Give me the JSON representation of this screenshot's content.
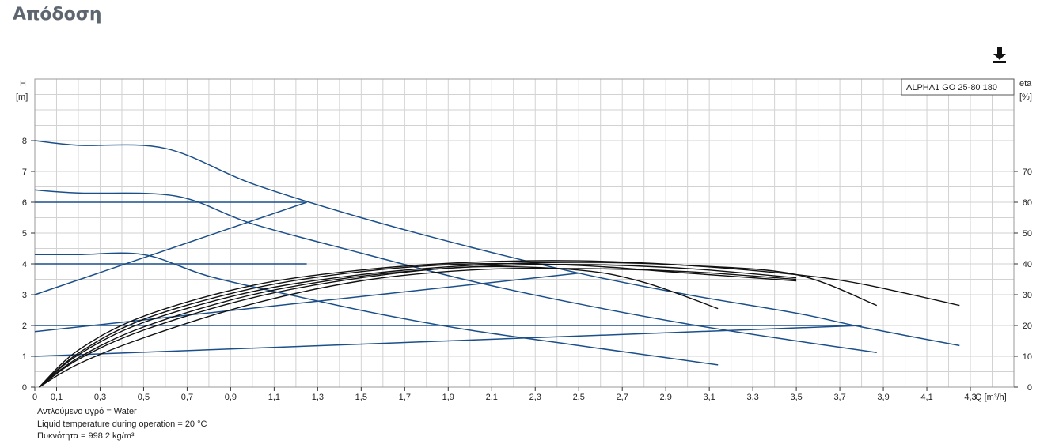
{
  "page": {
    "title": "Απόδοση"
  },
  "toolbar": {
    "download_icon": "download-icon"
  },
  "chart_data": {
    "type": "line",
    "title": "ALPHA1 GO 25-80 180",
    "xlabel": "Q [m³/h]",
    "ylabel_left": {
      "name": "H",
      "unit": "[m]"
    },
    "ylabel_right": {
      "name": "eta",
      "unit": "[%]"
    },
    "xlim": [
      0,
      4.5
    ],
    "ylim_left": [
      0,
      10
    ],
    "ylim_right": [
      0,
      100
    ],
    "x_ticks": [
      "0",
      "0,1",
      "0,3",
      "0,5",
      "0,7",
      "0,9",
      "1,1",
      "1,3",
      "1,5",
      "1,7",
      "1,9",
      "2,1",
      "2,3",
      "2,5",
      "2,7",
      "2,9",
      "3,1",
      "3,3",
      "3,5",
      "3,7",
      "3,9",
      "4,1",
      "4,3"
    ],
    "y_ticks_left": [
      "0",
      "1",
      "2",
      "3",
      "4",
      "5",
      "6",
      "7",
      "8"
    ],
    "y_ticks_right": [
      "0",
      "10",
      "20",
      "30",
      "40",
      "50",
      "60",
      "70"
    ],
    "grid": true,
    "legend": "top-right",
    "colors": {
      "head": "#1b4f8a",
      "efficiency": "#111111",
      "grid": "#d2d2d2"
    },
    "head_curves": [
      {
        "points": [
          [
            0,
            8.0
          ],
          [
            0.2,
            7.85
          ],
          [
            0.6,
            7.75
          ],
          [
            1.0,
            6.6
          ],
          [
            1.5,
            5.5
          ],
          [
            2.0,
            4.55
          ],
          [
            2.5,
            3.7
          ],
          [
            3.0,
            3.0
          ],
          [
            3.5,
            2.4
          ],
          [
            3.8,
            1.95
          ],
          [
            4.25,
            1.35
          ]
        ]
      },
      {
        "points": [
          [
            0,
            6.4
          ],
          [
            0.2,
            6.3
          ],
          [
            0.65,
            6.2
          ],
          [
            1.0,
            5.3
          ],
          [
            1.5,
            4.35
          ],
          [
            2.0,
            3.45
          ],
          [
            2.5,
            2.7
          ],
          [
            3.0,
            2.05
          ],
          [
            3.5,
            1.5
          ],
          [
            3.87,
            1.12
          ]
        ]
      },
      {
        "points": [
          [
            0,
            4.3
          ],
          [
            0.2,
            4.3
          ],
          [
            0.5,
            4.3
          ],
          [
            0.8,
            3.6
          ],
          [
            1.2,
            2.95
          ],
          [
            1.6,
            2.35
          ],
          [
            2.0,
            1.85
          ],
          [
            2.5,
            1.35
          ],
          [
            3.14,
            0.72
          ]
        ]
      },
      {
        "points": [
          [
            0,
            6.0
          ],
          [
            1.25,
            6.0
          ]
        ]
      },
      {
        "points": [
          [
            0,
            4.0
          ],
          [
            1.25,
            4.0
          ]
        ]
      },
      {
        "points": [
          [
            0,
            2.0
          ],
          [
            3.8,
            2.0
          ]
        ]
      },
      {
        "points": [
          [
            0,
            3.0
          ],
          [
            1.25,
            6.0
          ]
        ]
      },
      {
        "points": [
          [
            0,
            1.8
          ],
          [
            2.5,
            3.7
          ]
        ]
      },
      {
        "points": [
          [
            0,
            1.0
          ],
          [
            3.8,
            2.0
          ]
        ]
      }
    ],
    "efficiency_curves": [
      {
        "points": [
          [
            0.02,
            0
          ],
          [
            0.2,
            12
          ],
          [
            0.5,
            23
          ],
          [
            1.0,
            33
          ],
          [
            1.5,
            38
          ],
          [
            2.0,
            40.5
          ],
          [
            2.5,
            41
          ],
          [
            3.0,
            39.5
          ],
          [
            3.5,
            36.5
          ],
          [
            3.8,
            33.5
          ],
          [
            4.25,
            26.5
          ]
        ]
      },
      {
        "points": [
          [
            0.02,
            0
          ],
          [
            0.2,
            10.5
          ],
          [
            0.5,
            21
          ],
          [
            1.0,
            31
          ],
          [
            1.5,
            36.5
          ],
          [
            2.0,
            39.5
          ],
          [
            2.5,
            40.5
          ],
          [
            3.0,
            39.5
          ],
          [
            3.5,
            36.5
          ],
          [
            3.87,
            26.5
          ]
        ]
      },
      {
        "points": [
          [
            0.02,
            0
          ],
          [
            0.2,
            9
          ],
          [
            0.5,
            18.5
          ],
          [
            1.0,
            29
          ],
          [
            1.5,
            35.5
          ],
          [
            2.0,
            39
          ],
          [
            2.5,
            38
          ],
          [
            2.8,
            34
          ],
          [
            3.14,
            25.5
          ]
        ]
      },
      {
        "points": [
          [
            0.02,
            0
          ],
          [
            0.2,
            11
          ],
          [
            0.5,
            22
          ],
          [
            1.0,
            32
          ],
          [
            1.5,
            37.5
          ],
          [
            2.0,
            40
          ],
          [
            2.5,
            39.5
          ],
          [
            3.0,
            37
          ],
          [
            3.5,
            34.5
          ]
        ]
      },
      {
        "points": [
          [
            0.02,
            0
          ],
          [
            0.2,
            9.5
          ],
          [
            0.5,
            19.5
          ],
          [
            1.0,
            30
          ],
          [
            1.5,
            36
          ],
          [
            2.0,
            39
          ],
          [
            2.5,
            39.8
          ],
          [
            3.0,
            38.5
          ],
          [
            3.5,
            35.5
          ]
        ]
      },
      {
        "points": [
          [
            0.02,
            0
          ],
          [
            0.2,
            7.5
          ],
          [
            0.5,
            16
          ],
          [
            1.0,
            27
          ],
          [
            1.5,
            34.5
          ],
          [
            2.0,
            38
          ],
          [
            2.5,
            38.5
          ],
          [
            3.0,
            37.5
          ],
          [
            3.5,
            35
          ]
        ]
      }
    ]
  },
  "fluid_info": {
    "liquid": "Αντλούμενο υγρό = Water",
    "temperature": "Liquid temperature during operation = 20 °C",
    "density": "Πυκνότητα = 998.2 kg/m³"
  }
}
